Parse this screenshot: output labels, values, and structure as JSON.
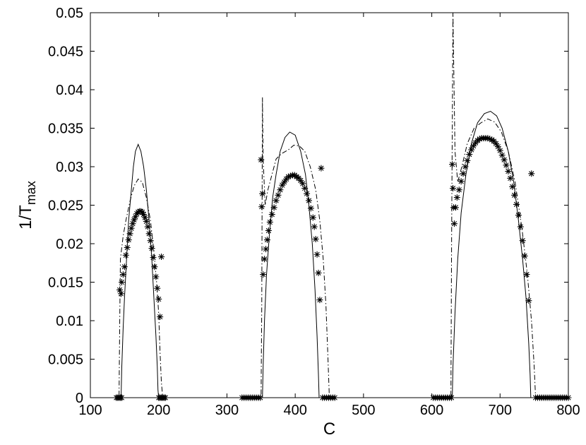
{
  "chart_data": {
    "type": "line",
    "xlabel": "C",
    "ylabel": {
      "main": "1/T",
      "subscript": "max"
    },
    "xlim": [
      100,
      800
    ],
    "ylim": [
      0,
      0.05
    ],
    "x_ticks": [
      "100",
      "200",
      "300",
      "400",
      "500",
      "600",
      "700",
      "800"
    ],
    "y_ticks": [
      "0",
      "0.005",
      "0.01",
      "0.015",
      "0.02",
      "0.025",
      "0.03",
      "0.035",
      "0.04",
      "0.045",
      "0.05"
    ],
    "grid": false,
    "legend": "none",
    "series": [
      {
        "style": "solid",
        "points": [
          [
            100,
            0
          ],
          [
            145,
            0
          ],
          [
            146,
            0.004
          ],
          [
            148,
            0.009
          ],
          [
            150,
            0.013
          ],
          [
            153,
            0.018
          ],
          [
            156,
            0.023
          ],
          [
            160,
            0.027
          ],
          [
            163,
            0.03
          ],
          [
            166,
            0.032
          ],
          [
            170,
            0.0329
          ],
          [
            174,
            0.032
          ],
          [
            178,
            0.03
          ],
          [
            182,
            0.027
          ],
          [
            186,
            0.023
          ],
          [
            190,
            0.018
          ],
          [
            193,
            0.013
          ],
          [
            196,
            0.008
          ],
          [
            198,
            0.004
          ],
          [
            199,
            0.001
          ],
          [
            200,
            0
          ],
          [
            352,
            0
          ],
          [
            353,
            0.004
          ],
          [
            355,
            0.01
          ],
          [
            358,
            0.016
          ],
          [
            362,
            0.021
          ],
          [
            367,
            0.026
          ],
          [
            372,
            0.029
          ],
          [
            378,
            0.032
          ],
          [
            385,
            0.0338
          ],
          [
            392,
            0.0345
          ],
          [
            400,
            0.0341
          ],
          [
            408,
            0.032
          ],
          [
            415,
            0.029
          ],
          [
            420,
            0.025
          ],
          [
            425,
            0.02
          ],
          [
            429,
            0.014
          ],
          [
            432,
            0.008
          ],
          [
            434,
            0.003
          ],
          [
            435,
            0
          ],
          [
            630,
            0
          ],
          [
            631,
            0.004
          ],
          [
            634,
            0.011
          ],
          [
            638,
            0.018
          ],
          [
            643,
            0.024
          ],
          [
            650,
            0.029
          ],
          [
            658,
            0.033
          ],
          [
            667,
            0.0357
          ],
          [
            677,
            0.0369
          ],
          [
            686,
            0.0372
          ],
          [
            695,
            0.0366
          ],
          [
            703,
            0.035
          ],
          [
            712,
            0.032
          ],
          [
            720,
            0.028
          ],
          [
            727,
            0.023
          ],
          [
            733,
            0.018
          ],
          [
            738,
            0.013
          ],
          [
            742,
            0.007
          ],
          [
            744,
            0.003
          ],
          [
            745,
            0
          ],
          [
            800,
            0
          ]
        ]
      },
      {
        "style": "dashdot",
        "points": [
          [
            100,
            0
          ],
          [
            142,
            0
          ],
          [
            143,
            0.01
          ],
          [
            144,
            0.018
          ],
          [
            148,
            0.021
          ],
          [
            152,
            0.023
          ],
          [
            158,
            0.0255
          ],
          [
            164,
            0.0275
          ],
          [
            170,
            0.0284
          ],
          [
            176,
            0.028
          ],
          [
            182,
            0.026
          ],
          [
            188,
            0.023
          ],
          [
            193,
            0.019
          ],
          [
            197,
            0.015
          ],
          [
            200,
            0.011
          ],
          [
            202,
            0.006
          ],
          [
            204,
            0.002
          ],
          [
            206,
            0
          ],
          [
            350,
            0
          ],
          [
            351,
            0.012
          ],
          [
            352,
            0.039
          ],
          [
            353,
            0.031
          ],
          [
            356,
            0.025
          ],
          [
            360,
            0.027
          ],
          [
            366,
            0.029
          ],
          [
            372,
            0.031
          ],
          [
            380,
            0.0317
          ],
          [
            390,
            0.0322
          ],
          [
            398,
            0.0328
          ],
          [
            406,
            0.0327
          ],
          [
            414,
            0.032
          ],
          [
            422,
            0.03
          ],
          [
            430,
            0.027
          ],
          [
            436,
            0.023
          ],
          [
            441,
            0.018
          ],
          [
            445,
            0.012
          ],
          [
            448,
            0.005
          ],
          [
            450,
            0
          ],
          [
            628,
            0
          ],
          [
            629,
            0.02
          ],
          [
            631,
            0.05
          ],
          [
            634,
            0.032
          ],
          [
            638,
            0.028
          ],
          [
            644,
            0.03
          ],
          [
            652,
            0.033
          ],
          [
            662,
            0.035
          ],
          [
            672,
            0.0357
          ],
          [
            682,
            0.0362
          ],
          [
            692,
            0.0358
          ],
          [
            702,
            0.0345
          ],
          [
            712,
            0.032
          ],
          [
            722,
            0.028
          ],
          [
            732,
            0.022
          ],
          [
            740,
            0.016
          ],
          [
            746,
            0.01
          ],
          [
            750,
            0.004
          ],
          [
            752,
            0
          ],
          [
            800,
            0
          ]
        ]
      },
      {
        "style": "star-marker",
        "points": [
          [
            138,
            0
          ],
          [
            140,
            0
          ],
          [
            142,
            0
          ],
          [
            144,
            0
          ],
          [
            146,
            0
          ],
          [
            143,
            0.014
          ],
          [
            145,
            0.0135
          ],
          [
            146,
            0.015
          ],
          [
            148,
            0.016
          ],
          [
            150,
            0.017
          ],
          [
            152,
            0.0185
          ],
          [
            154,
            0.0195
          ],
          [
            156,
            0.0205
          ],
          [
            158,
            0.0213
          ],
          [
            160,
            0.022
          ],
          [
            162,
            0.0226
          ],
          [
            164,
            0.0231
          ],
          [
            166,
            0.0235
          ],
          [
            168,
            0.0239
          ],
          [
            170,
            0.0241
          ],
          [
            172,
            0.0242
          ],
          [
            174,
            0.0242
          ],
          [
            176,
            0.0241
          ],
          [
            178,
            0.0238
          ],
          [
            180,
            0.0234
          ],
          [
            182,
            0.0229
          ],
          [
            184,
            0.0222
          ],
          [
            186,
            0.0213
          ],
          [
            188,
            0.0204
          ],
          [
            190,
            0.0194
          ],
          [
            192,
            0.0182
          ],
          [
            194,
            0.017
          ],
          [
            196,
            0.0157
          ],
          [
            198,
            0.0142
          ],
          [
            200,
            0.0128
          ],
          [
            202,
            0.0105
          ],
          [
            204,
            0.0183
          ],
          [
            200,
            0
          ],
          [
            202,
            0
          ],
          [
            204,
            0
          ],
          [
            206,
            0
          ],
          [
            208,
            0
          ],
          [
            210,
            0
          ],
          [
            322,
            0
          ],
          [
            325,
            0
          ],
          [
            328,
            0
          ],
          [
            331,
            0
          ],
          [
            334,
            0
          ],
          [
            337,
            0
          ],
          [
            340,
            0
          ],
          [
            343,
            0
          ],
          [
            346,
            0
          ],
          [
            349,
            0
          ],
          [
            350,
            0.0309
          ],
          [
            351,
            0.0248
          ],
          [
            352,
            0.0265
          ],
          [
            353,
            0.016
          ],
          [
            355,
            0.018
          ],
          [
            357,
            0.0193
          ],
          [
            359,
            0.0205
          ],
          [
            361,
            0.0217
          ],
          [
            363,
            0.0228
          ],
          [
            366,
            0.0238
          ],
          [
            369,
            0.0247
          ],
          [
            372,
            0.0256
          ],
          [
            375,
            0.0263
          ],
          [
            378,
            0.027
          ],
          [
            381,
            0.0276
          ],
          [
            384,
            0.028
          ],
          [
            387,
            0.0284
          ],
          [
            390,
            0.0287
          ],
          [
            393,
            0.0288
          ],
          [
            396,
            0.0289
          ],
          [
            399,
            0.0289
          ],
          [
            402,
            0.0287
          ],
          [
            405,
            0.0285
          ],
          [
            408,
            0.0282
          ],
          [
            411,
            0.0278
          ],
          [
            414,
            0.0272
          ],
          [
            417,
            0.0265
          ],
          [
            420,
            0.0256
          ],
          [
            423,
            0.0246
          ],
          [
            426,
            0.0234
          ],
          [
            428,
            0.0222
          ],
          [
            430,
            0.0206
          ],
          [
            432,
            0.0186
          ],
          [
            434,
            0.0162
          ],
          [
            436,
            0.0127
          ],
          [
            438,
            0.0298
          ],
          [
            440,
            0
          ],
          [
            443,
            0
          ],
          [
            446,
            0
          ],
          [
            449,
            0
          ],
          [
            452,
            0
          ],
          [
            455,
            0
          ],
          [
            458,
            0
          ],
          [
            602,
            0
          ],
          [
            605,
            0
          ],
          [
            608,
            0
          ],
          [
            611,
            0
          ],
          [
            614,
            0
          ],
          [
            617,
            0
          ],
          [
            620,
            0
          ],
          [
            623,
            0
          ],
          [
            626,
            0
          ],
          [
            629,
            0
          ],
          [
            630,
            0.0303
          ],
          [
            631,
            0.0272
          ],
          [
            632,
            0.0247
          ],
          [
            633,
            0.0226
          ],
          [
            635,
            0.0247
          ],
          [
            637,
            0.026
          ],
          [
            640,
            0.027
          ],
          [
            643,
            0.0281
          ],
          [
            646,
            0.0291
          ],
          [
            649,
            0.03
          ],
          [
            652,
            0.0308
          ],
          [
            655,
            0.0316
          ],
          [
            658,
            0.0322
          ],
          [
            661,
            0.0327
          ],
          [
            664,
            0.0331
          ],
          [
            667,
            0.0334
          ],
          [
            670,
            0.0336
          ],
          [
            673,
            0.0337
          ],
          [
            676,
            0.0337
          ],
          [
            679,
            0.0337
          ],
          [
            682,
            0.0337
          ],
          [
            685,
            0.0336
          ],
          [
            688,
            0.0335
          ],
          [
            691,
            0.0333
          ],
          [
            694,
            0.033
          ],
          [
            697,
            0.0326
          ],
          [
            700,
            0.0321
          ],
          [
            703,
            0.0315
          ],
          [
            706,
            0.0309
          ],
          [
            709,
            0.0302
          ],
          [
            712,
            0.0294
          ],
          [
            715,
            0.0285
          ],
          [
            718,
            0.0274
          ],
          [
            721,
            0.0263
          ],
          [
            724,
            0.0251
          ],
          [
            727,
            0.0237
          ],
          [
            730,
            0.0222
          ],
          [
            733,
            0.0204
          ],
          [
            736,
            0.0184
          ],
          [
            739,
            0.016
          ],
          [
            742,
            0.0126
          ],
          [
            746,
            0.0291
          ],
          [
            752,
            0
          ],
          [
            755,
            0
          ],
          [
            758,
            0
          ],
          [
            761,
            0
          ],
          [
            764,
            0
          ],
          [
            767,
            0
          ],
          [
            770,
            0
          ],
          [
            773,
            0
          ],
          [
            776,
            0
          ],
          [
            779,
            0
          ],
          [
            782,
            0
          ],
          [
            785,
            0
          ],
          [
            788,
            0
          ],
          [
            791,
            0
          ],
          [
            794,
            0
          ],
          [
            797,
            0
          ],
          [
            800,
            0
          ]
        ]
      }
    ]
  }
}
